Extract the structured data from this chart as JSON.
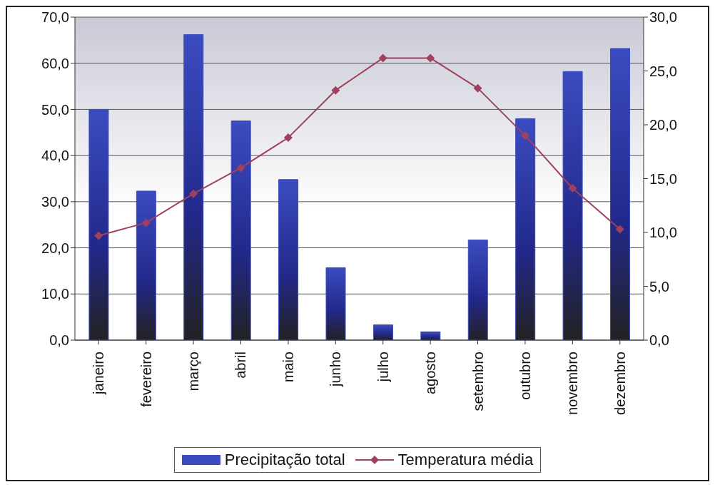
{
  "chart_data": {
    "type": "bar",
    "categories": [
      "janeiro",
      "fevereiro",
      "março",
      "abril",
      "maio",
      "junho",
      "julho",
      "agosto",
      "setembro",
      "outubro",
      "novembro",
      "dezembro"
    ],
    "series": [
      {
        "name": "Precipitação total",
        "color": "#3b4cc0",
        "values": [
          50.0,
          32.3,
          66.2,
          47.5,
          34.8,
          15.7,
          3.3,
          1.8,
          21.7,
          48.0,
          58.2,
          63.2
        ]
      },
      {
        "name": "Temperatura média",
        "type": "line",
        "axis": "y2",
        "color": "#a0405f",
        "marker": "diamond",
        "values": [
          9.7,
          10.9,
          13.6,
          16.0,
          18.8,
          23.2,
          26.2,
          26.2,
          23.4,
          19.0,
          14.1,
          10.3
        ]
      }
    ],
    "ylim": [
      0,
      70
    ],
    "yticks": [
      {
        "value": 0,
        "label": "0,0"
      },
      {
        "value": 10,
        "label": "10,0"
      },
      {
        "value": 20,
        "label": "20,0"
      },
      {
        "value": 30,
        "label": "30,0"
      },
      {
        "value": 40,
        "label": "40,0"
      },
      {
        "value": 50,
        "label": "50,0"
      },
      {
        "value": 60,
        "label": "60,0"
      },
      {
        "value": 70,
        "label": "70,0"
      }
    ],
    "y2lim": [
      0,
      30
    ],
    "y2ticks": [
      {
        "value": 0,
        "label": "0,0"
      },
      {
        "value": 5,
        "label": "5,0"
      },
      {
        "value": 10,
        "label": "10,0"
      },
      {
        "value": 15,
        "label": "15,0"
      },
      {
        "value": 20,
        "label": "20,0"
      },
      {
        "value": 25,
        "label": "25,0"
      },
      {
        "value": 30,
        "label": "30,0"
      }
    ],
    "grid": "y",
    "legend": "bottom"
  }
}
